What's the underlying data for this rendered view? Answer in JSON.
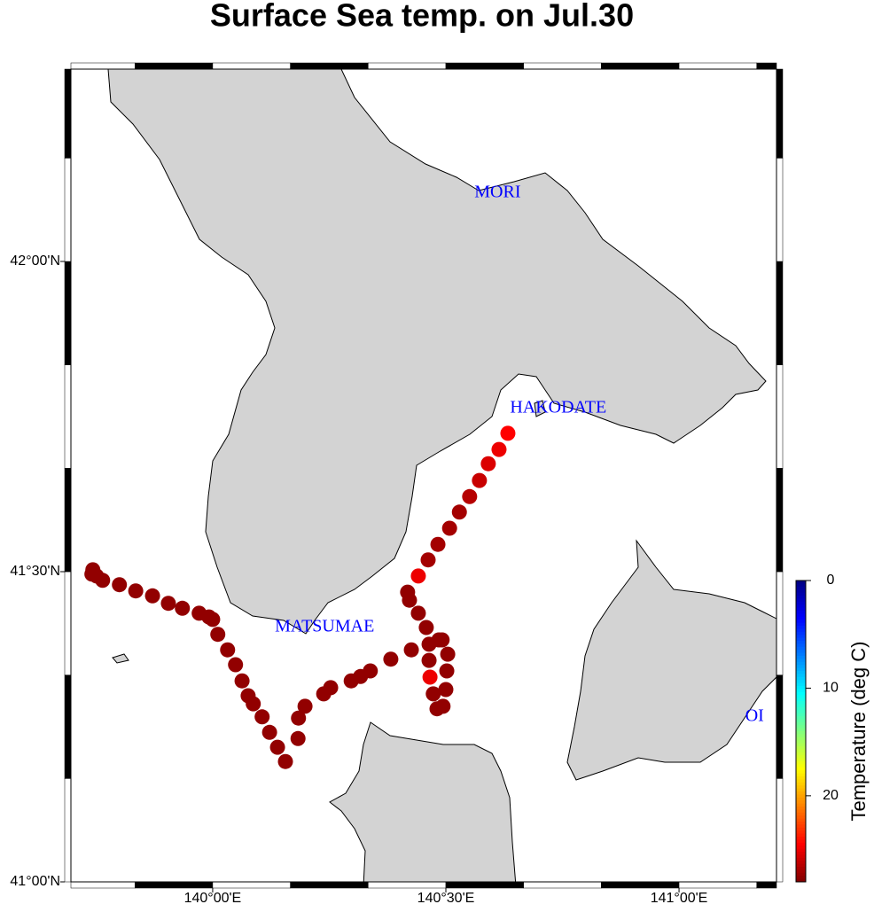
{
  "chart_data": {
    "type": "scatter",
    "title": "Surface Sea temp. on Jul.30",
    "xlim": [
      139.696,
      141.209
    ],
    "ylim": [
      41,
      42.31
    ],
    "xticks": [
      {
        "value": 140,
        "label": "140°00'E"
      },
      {
        "value": 140.5,
        "label": "140°30'E"
      },
      {
        "value": 141,
        "label": "141°00'E"
      }
    ],
    "yticks": [
      {
        "value": 41,
        "label": "41°00'N"
      },
      {
        "value": 41.5,
        "label": "41°30'N"
      },
      {
        "value": 42,
        "label": "42°00'N"
      }
    ],
    "places": [
      {
        "name": "MORI",
        "x": 140.611,
        "y": 42.11
      },
      {
        "name": "HAKODATE",
        "x": 140.741,
        "y": 41.763
      },
      {
        "name": "MATSUMAE",
        "x": 140.24,
        "y": 41.41
      },
      {
        "name": "OI",
        "x": 141.162,
        "y": 41.266
      }
    ],
    "x": [
      140.633,
      140.614,
      140.591,
      140.572,
      140.551,
      140.529,
      140.508,
      140.483,
      140.462,
      140.441,
      140.418,
      140.422,
      140.441,
      140.458,
      140.464,
      140.485,
      140.492,
      140.504,
      140.464,
      140.466,
      140.502,
      140.473,
      140.5,
      140.481,
      140.494,
      140.426,
      140.382,
      140.338,
      140.317,
      140.297,
      140.253,
      140.238,
      140.198,
      140.184,
      140.183,
      140.156,
      140.139,
      140.122,
      140.106,
      140.087,
      140.076,
      140.063,
      140.049,
      140.032,
      140.011,
      140.0,
      139.992,
      139.971,
      139.935,
      139.905,
      139.871,
      139.835,
      139.8,
      139.764,
      139.751,
      139.741,
      139.743
    ],
    "y": [
      41.723,
      41.697,
      41.674,
      41.647,
      41.621,
      41.596,
      41.57,
      41.544,
      41.519,
      41.493,
      41.467,
      41.454,
      41.433,
      41.41,
      41.383,
      41.39,
      41.39,
      41.367,
      41.357,
      41.33,
      41.34,
      41.303,
      41.31,
      41.279,
      41.283,
      41.374,
      41.359,
      41.34,
      41.331,
      41.324,
      41.313,
      41.303,
      41.283,
      41.264,
      41.231,
      41.194,
      41.217,
      41.241,
      41.266,
      41.287,
      41.3,
      41.324,
      41.35,
      41.374,
      41.399,
      41.423,
      41.427,
      41.433,
      41.441,
      41.449,
      41.461,
      41.469,
      41.479,
      41.486,
      41.493,
      41.496,
      41.503
    ],
    "values": [
      24.5,
      25,
      25.5,
      26,
      26.5,
      27,
      27,
      27,
      27,
      25,
      27.5,
      27.5,
      27.5,
      27.5,
      27.5,
      27.5,
      27.5,
      27.5,
      27.5,
      25,
      27.5,
      27.5,
      27.5,
      27.5,
      27.5,
      27.5,
      27.5,
      27.5,
      27.5,
      27.5,
      27.5,
      27.5,
      27.5,
      27.5,
      27.5,
      27.5,
      27.5,
      27.5,
      27.5,
      27.5,
      27.5,
      27.5,
      27.5,
      27.5,
      27.5,
      27.5,
      27.5,
      27.5,
      27.5,
      27.5,
      27.5,
      27.5,
      27.5,
      27.5,
      27.5,
      27.5,
      27.5
    ],
    "colormap": "jet",
    "colorbar": {
      "label": "Temperature (deg C)",
      "lim": [
        0,
        28
      ],
      "ticks": [
        0,
        10,
        20
      ]
    }
  }
}
